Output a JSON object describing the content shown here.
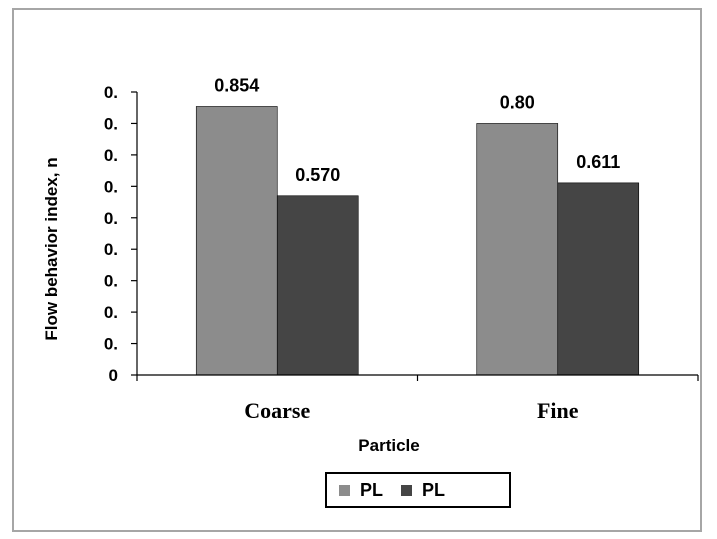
{
  "chart_data": {
    "type": "bar",
    "ylabel": "Flow behavior index, n",
    "xlabel": "Particle",
    "categories": [
      "Coarse",
      "Fine"
    ],
    "ytick_labels": [
      "0",
      "0.",
      "0.",
      "0.",
      "0.",
      "0.",
      "0.",
      "0.",
      "0.",
      "0."
    ],
    "ylim": [
      0,
      0.9
    ],
    "series": [
      {
        "name": "PL",
        "color": "#8c8c8c",
        "values": [
          0.854,
          0.8
        ],
        "labels": [
          "0.854",
          "0.80"
        ]
      },
      {
        "name": "PL",
        "color": "#454545",
        "values": [
          0.57,
          0.611
        ],
        "labels": [
          "0.570",
          "0.611"
        ]
      }
    ],
    "legend_position": "bottom",
    "grid": false
  }
}
